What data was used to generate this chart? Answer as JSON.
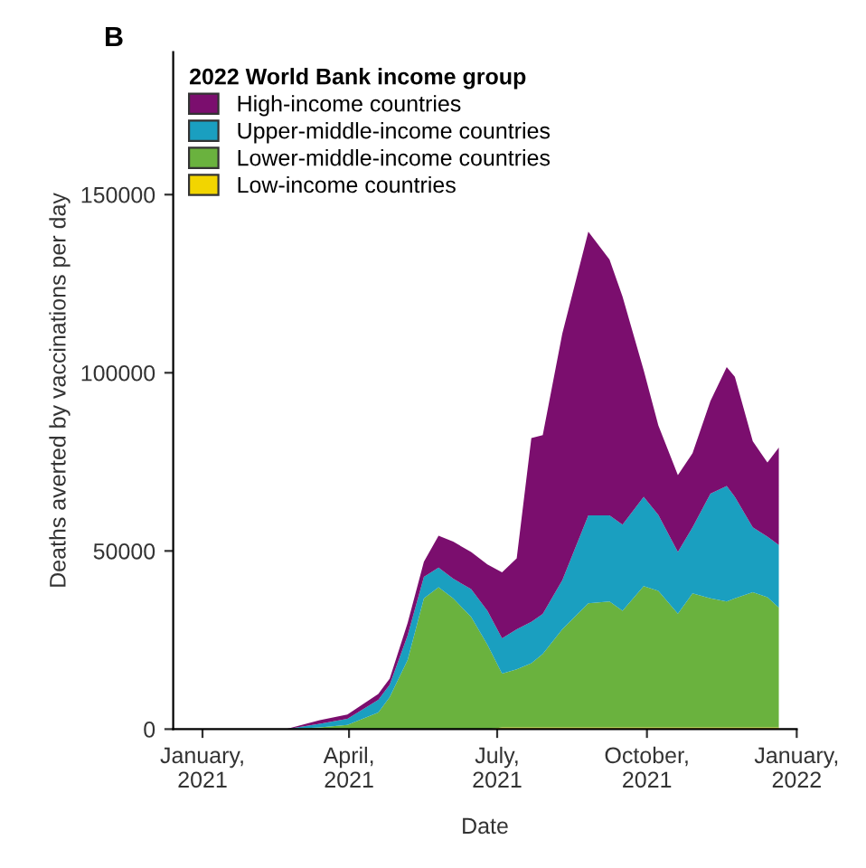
{
  "chart_data": {
    "type": "area",
    "stacked": true,
    "annotations": [
      "B"
    ],
    "xlabel": "Date",
    "ylabel": "Deaths averted by vaccinations per day",
    "legend_title": "2022 World Bank income group",
    "legend": "top left",
    "grid": false,
    "x": [
      "2021-01-01",
      "2021-02-21",
      "2021-03-14",
      "2021-03-31",
      "2021-04-19",
      "2021-04-26",
      "2021-05-07",
      "2021-05-17",
      "2021-05-26",
      "2021-06-04",
      "2021-06-15",
      "2021-06-25",
      "2021-07-04",
      "2021-07-13",
      "2021-07-22",
      "2021-07-29",
      "2021-08-10",
      "2021-08-26",
      "2021-09-08",
      "2021-09-16",
      "2021-09-29",
      "2021-10-08",
      "2021-10-20",
      "2021-10-29",
      "2021-11-09",
      "2021-11-19",
      "2021-11-24",
      "2021-12-05",
      "2021-12-14",
      "2021-12-21"
    ],
    "series": [
      {
        "name": "Low-income countries",
        "color": "#f2d500",
        "values": [
          0,
          0,
          0,
          0,
          0,
          0,
          0,
          0,
          0,
          0,
          0,
          0,
          500,
          500,
          500,
          500,
          500,
          500,
          500,
          500,
          500,
          500,
          500,
          500,
          500,
          500,
          500,
          500,
          500,
          500
        ]
      },
      {
        "name": "Lower-middle-income countries",
        "color": "#6ab23e",
        "values": [
          0,
          0,
          500,
          1200,
          4700,
          9000,
          19400,
          36700,
          39800,
          36700,
          31500,
          23700,
          15100,
          16300,
          18000,
          20600,
          27500,
          34800,
          35300,
          32700,
          39600,
          38300,
          31900,
          37600,
          36200,
          35300,
          36200,
          37900,
          36500,
          33600
        ]
      },
      {
        "name": "Upper-middle-income countries",
        "color": "#1a9fc0",
        "values": [
          0,
          0,
          1000,
          1700,
          3500,
          3500,
          6900,
          6000,
          5500,
          5500,
          7800,
          9500,
          9900,
          11200,
          11600,
          11200,
          13800,
          24700,
          24200,
          24200,
          25100,
          21300,
          17300,
          18500,
          29400,
          32400,
          28500,
          18200,
          17000,
          17600
        ]
      },
      {
        "name": "High-income countries",
        "color": "#7b0e6e",
        "values": [
          0,
          0,
          1000,
          1200,
          1700,
          1700,
          3500,
          4300,
          9000,
          10400,
          10400,
          13000,
          18500,
          19900,
          51600,
          50200,
          69200,
          79600,
          71800,
          64000,
          35500,
          25100,
          21600,
          20800,
          26000,
          33400,
          33700,
          24200,
          20800,
          27300
        ]
      }
    ],
    "xlim": [
      "2020-12-14",
      "2022-01-01"
    ],
    "xticks": [
      {
        "value": "2021-01-01",
        "label": "January,\n2021"
      },
      {
        "value": "2021-04-01",
        "label": "April,\n2021"
      },
      {
        "value": "2021-07-01",
        "label": "July,\n2021"
      },
      {
        "value": "2021-10-01",
        "label": "October,\n2021"
      },
      {
        "value": "2022-01-01",
        "label": "January,\n2022"
      }
    ],
    "ylim": [
      0,
      190000
    ],
    "yticks": [
      {
        "value": 0,
        "label": "0"
      },
      {
        "value": 50000,
        "label": "50000"
      },
      {
        "value": 100000,
        "label": "100000"
      },
      {
        "value": 150000,
        "label": "150000"
      }
    ]
  }
}
